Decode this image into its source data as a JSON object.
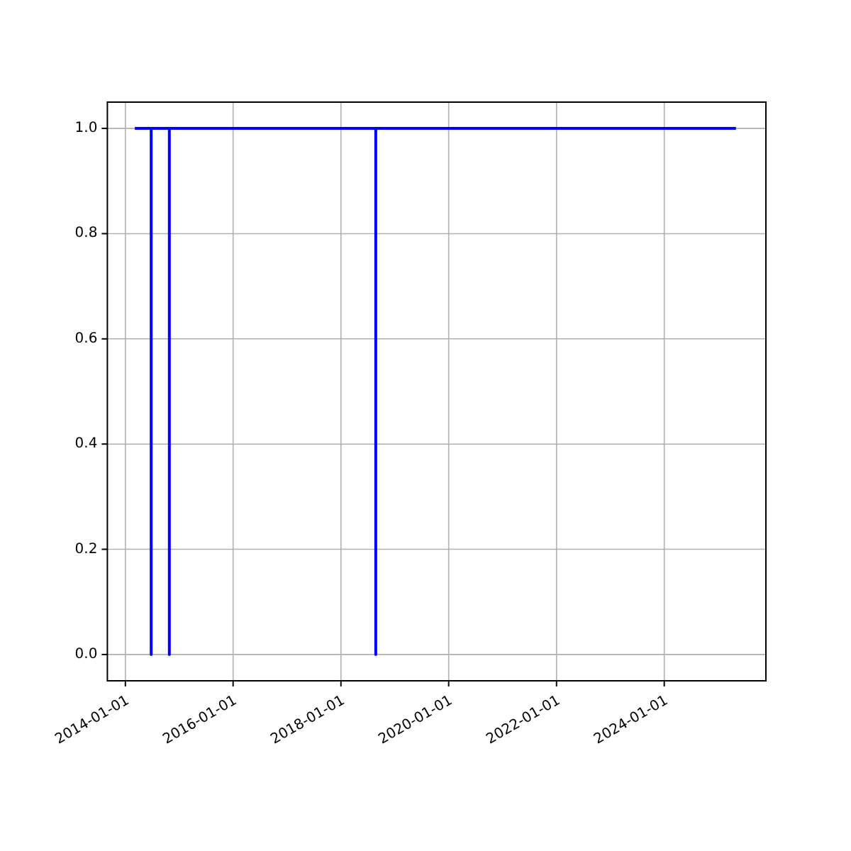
{
  "chart_data": {
    "type": "line",
    "x": [
      "2014-03-06",
      "2014-06-25",
      "2014-06-25",
      "2014-06-25",
      "2014-10-26",
      "2014-10-26",
      "2014-10-26",
      "2018-08-25",
      "2018-08-25",
      "2018-08-25",
      "2025-05-01"
    ],
    "series": [
      {
        "color": "#0000ff",
        "values": [
          1,
          1,
          0,
          1,
          1,
          0,
          1,
          1,
          0,
          1,
          1
        ]
      }
    ],
    "xlim": [
      "2013-09-01",
      "2025-11-20"
    ],
    "xticks": [
      {
        "value": "2014-01-01",
        "label": "2014-01-01"
      },
      {
        "value": "2016-01-01",
        "label": "2016-01-01"
      },
      {
        "value": "2018-01-01",
        "label": "2018-01-01"
      },
      {
        "value": "2020-01-01",
        "label": "2020-01-01"
      },
      {
        "value": "2022-01-01",
        "label": "2022-01-01"
      },
      {
        "value": "2024-01-01",
        "label": "2024-01-01"
      }
    ],
    "ylim": [
      -0.05,
      1.05
    ],
    "yticks": [
      {
        "value": 0,
        "label": "0.0"
      },
      {
        "value": 0.2,
        "label": "0.2"
      },
      {
        "value": 0.4,
        "label": "0.4"
      },
      {
        "value": 0.6,
        "label": "0.6"
      },
      {
        "value": 0.8,
        "label": "0.8"
      },
      {
        "value": 1,
        "label": "1.0"
      }
    ],
    "grid": true
  }
}
